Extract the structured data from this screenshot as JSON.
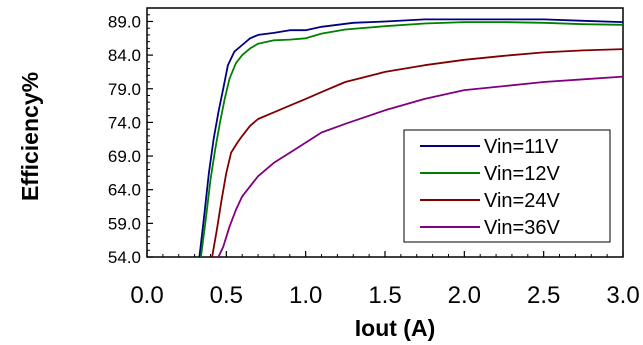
{
  "chart_data": {
    "type": "line",
    "title": "",
    "xlabel": "Iout (A)",
    "ylabel": "Efficiency%",
    "xlim": [
      0.0,
      3.0
    ],
    "ylim": [
      54.0,
      91.0
    ],
    "x_ticks": [
      "0.0",
      "0.5",
      "1.0",
      "1.5",
      "2.0",
      "2.5",
      "3.0"
    ],
    "y_ticks": [
      "54.0",
      "59.0",
      "64.0",
      "69.0",
      "74.0",
      "79.0",
      "84.0",
      "89.0"
    ],
    "grid": false,
    "legend_position": "bottom-right",
    "series": [
      {
        "name": "Vin=11V",
        "color": "#000080",
        "x": [
          0.33,
          0.36,
          0.39,
          0.42,
          0.45,
          0.48,
          0.51,
          0.55,
          0.6,
          0.65,
          0.7,
          0.8,
          0.9,
          1.0,
          1.1,
          1.3,
          1.5,
          1.75,
          2.0,
          2.25,
          2.5,
          2.75,
          3.0
        ],
        "y": [
          54.0,
          60.0,
          66.5,
          71.5,
          75.5,
          79.0,
          82.5,
          84.5,
          85.5,
          86.5,
          87.0,
          87.3,
          87.7,
          87.7,
          88.2,
          88.8,
          89.0,
          89.3,
          89.3,
          89.3,
          89.3,
          89.1,
          88.9
        ]
      },
      {
        "name": "Vin=12V",
        "color": "#008000",
        "x": [
          0.34,
          0.37,
          0.4,
          0.43,
          0.46,
          0.49,
          0.52,
          0.56,
          0.6,
          0.65,
          0.7,
          0.8,
          0.9,
          1.0,
          1.1,
          1.25,
          1.5,
          1.75,
          2.0,
          2.25,
          2.5,
          2.75,
          3.0
        ],
        "y": [
          54.0,
          59.5,
          65.5,
          70.0,
          74.0,
          77.5,
          80.5,
          82.8,
          84.0,
          85.0,
          85.7,
          86.2,
          86.3,
          86.5,
          87.2,
          87.8,
          88.3,
          88.7,
          88.9,
          88.9,
          88.8,
          88.6,
          88.5
        ]
      },
      {
        "name": "Vin=24V",
        "color": "#800000",
        "x": [
          0.41,
          0.44,
          0.47,
          0.5,
          0.53,
          0.57,
          0.6,
          0.65,
          0.7,
          0.8,
          0.9,
          1.0,
          1.1,
          1.25,
          1.5,
          1.75,
          2.0,
          2.25,
          2.5,
          2.75,
          3.0
        ],
        "y": [
          54.0,
          58.0,
          62.5,
          66.5,
          69.5,
          71.0,
          72.0,
          73.5,
          74.5,
          75.5,
          76.5,
          77.5,
          78.5,
          80.0,
          81.5,
          82.5,
          83.3,
          83.9,
          84.4,
          84.7,
          84.9
        ]
      },
      {
        "name": "Vin=36V",
        "color": "#800080",
        "x": [
          0.45,
          0.48,
          0.52,
          0.56,
          0.6,
          0.65,
          0.7,
          0.8,
          0.9,
          1.0,
          1.1,
          1.25,
          1.5,
          1.75,
          2.0,
          2.25,
          2.5,
          2.75,
          3.0
        ],
        "y": [
          54.0,
          55.5,
          58.5,
          61.0,
          63.0,
          64.5,
          66.0,
          68.0,
          69.5,
          71.0,
          72.5,
          73.8,
          75.8,
          77.5,
          78.8,
          79.4,
          80.0,
          80.4,
          80.8
        ]
      }
    ]
  }
}
